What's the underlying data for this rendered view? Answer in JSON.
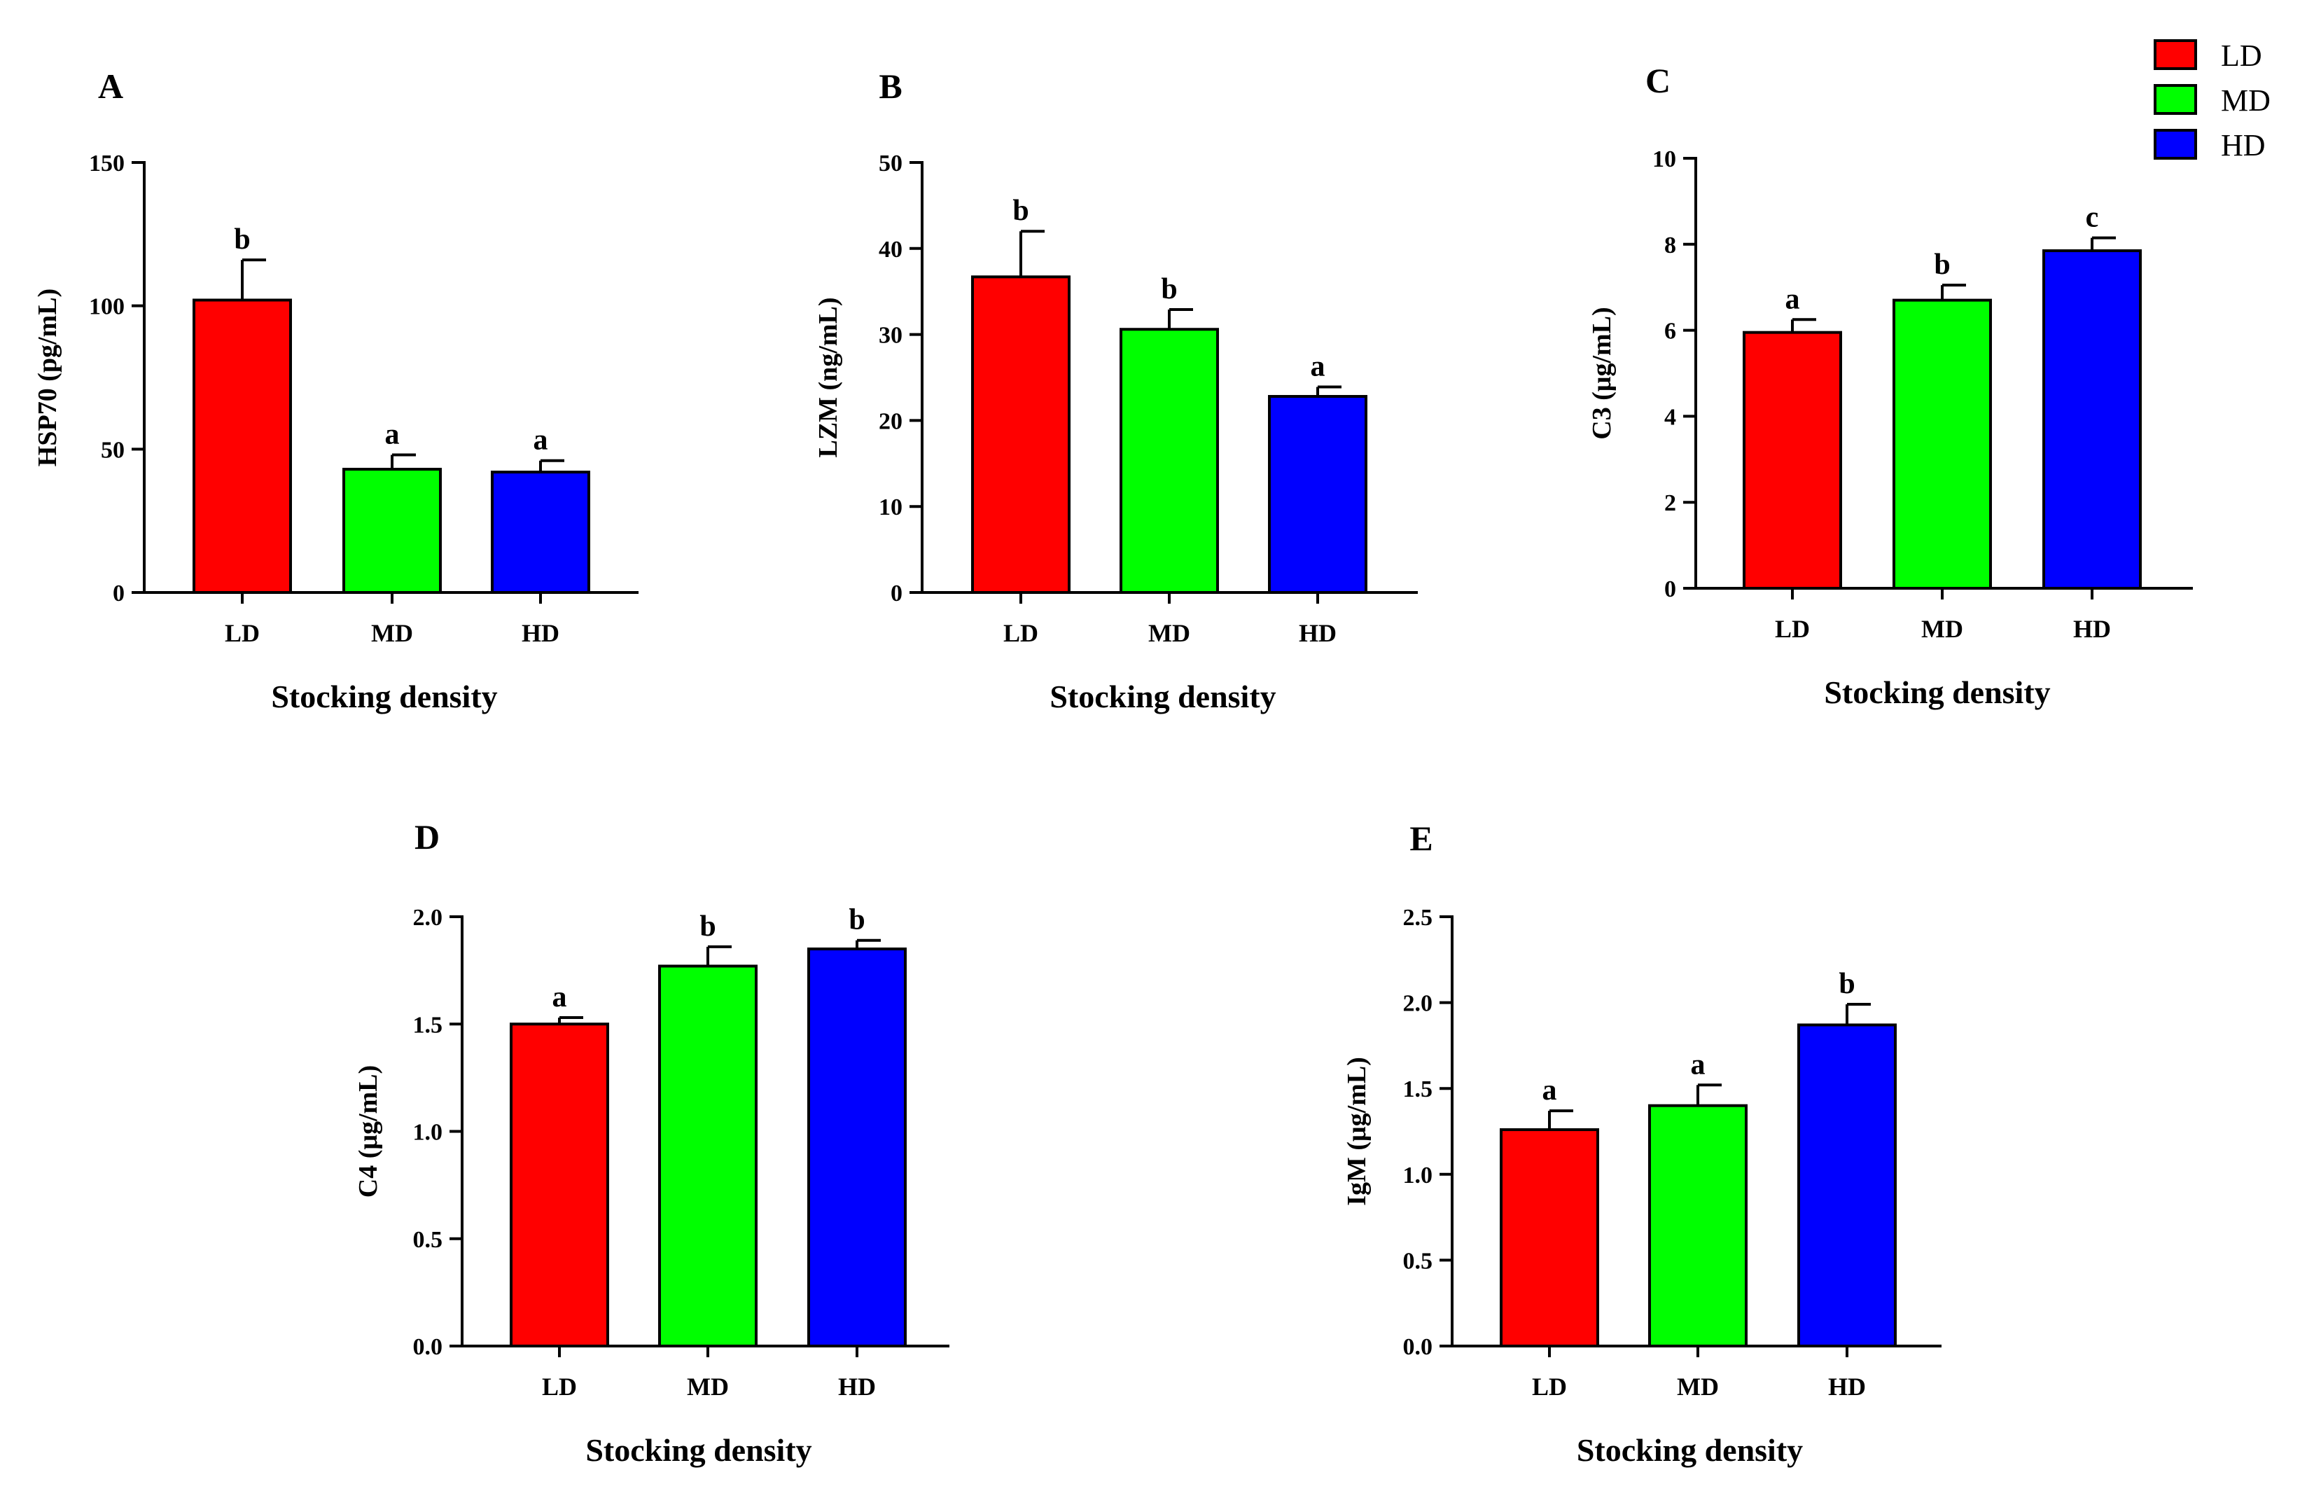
{
  "legend": {
    "items": [
      {
        "label": "LD",
        "color": "#ff0000"
      },
      {
        "label": "MD",
        "color": "#00ff00"
      },
      {
        "label": "HD",
        "color": "#0000ff"
      }
    ]
  },
  "chart_data": [
    {
      "panel": "A",
      "type": "bar",
      "title": "",
      "xlabel": "Stocking density",
      "ylabel": "HSP70 (pg/mL)",
      "categories": [
        "LD",
        "MD",
        "HD"
      ],
      "values": [
        102,
        43,
        42
      ],
      "errors": [
        14,
        5,
        4
      ],
      "significance": [
        "b",
        "a",
        "a"
      ],
      "colors": [
        "#ff0000",
        "#00ff00",
        "#0000ff"
      ],
      "ylim": [
        0,
        150
      ],
      "yticks": [
        0,
        50,
        100,
        150
      ],
      "ytick_labels": [
        "0",
        "50",
        "100",
        "150"
      ]
    },
    {
      "panel": "B",
      "type": "bar",
      "title": "",
      "xlabel": "Stocking density",
      "ylabel": "LZM (ng/mL)",
      "categories": [
        "LD",
        "MD",
        "HD"
      ],
      "values": [
        36.7,
        30.6,
        22.8
      ],
      "errors": [
        5.3,
        2.3,
        1.1
      ],
      "significance": [
        "b",
        "b",
        "a"
      ],
      "colors": [
        "#ff0000",
        "#00ff00",
        "#0000ff"
      ],
      "ylim": [
        0,
        50
      ],
      "yticks": [
        0,
        10,
        20,
        30,
        40,
        50
      ],
      "ytick_labels": [
        "0",
        "10",
        "20",
        "30",
        "40",
        "50"
      ]
    },
    {
      "panel": "C",
      "type": "bar",
      "title": "",
      "xlabel": "Stocking density",
      "ylabel": "C3 (μg/mL)",
      "categories": [
        "LD",
        "MD",
        "HD"
      ],
      "values": [
        5.95,
        6.7,
        7.85
      ],
      "errors": [
        0.3,
        0.35,
        0.3
      ],
      "significance": [
        "a",
        "b",
        "c"
      ],
      "colors": [
        "#ff0000",
        "#00ff00",
        "#0000ff"
      ],
      "ylim": [
        0,
        10
      ],
      "yticks": [
        0,
        2,
        4,
        6,
        8,
        10
      ],
      "ytick_labels": [
        "0",
        "2",
        "4",
        "6",
        "8",
        "10"
      ]
    },
    {
      "panel": "D",
      "type": "bar",
      "title": "",
      "xlabel": "Stocking density",
      "ylabel": "C4 (μg/mL)",
      "categories": [
        "LD",
        "MD",
        "HD"
      ],
      "values": [
        1.5,
        1.77,
        1.85
      ],
      "errors": [
        0.03,
        0.09,
        0.04
      ],
      "significance": [
        "a",
        "b",
        "b"
      ],
      "colors": [
        "#ff0000",
        "#00ff00",
        "#0000ff"
      ],
      "ylim": [
        0,
        2
      ],
      "yticks": [
        0,
        0.5,
        1,
        1.5,
        2
      ],
      "ytick_labels": [
        "0.0",
        "0.5",
        "1.0",
        "1.5",
        "2.0"
      ]
    },
    {
      "panel": "E",
      "type": "bar",
      "title": "",
      "xlabel": "Stocking density",
      "ylabel": "IgM (μg/mL)",
      "categories": [
        "LD",
        "MD",
        "HD"
      ],
      "values": [
        1.26,
        1.4,
        1.87
      ],
      "errors": [
        0.11,
        0.12,
        0.12
      ],
      "significance": [
        "a",
        "a",
        "b"
      ],
      "colors": [
        "#ff0000",
        "#00ff00",
        "#0000ff"
      ],
      "ylim": [
        0,
        2.5
      ],
      "yticks": [
        0,
        0.5,
        1,
        1.5,
        2,
        2.5
      ],
      "ytick_labels": [
        "0.0",
        "0.5",
        "1.0",
        "1.5",
        "2.0",
        "2.5"
      ]
    }
  ]
}
